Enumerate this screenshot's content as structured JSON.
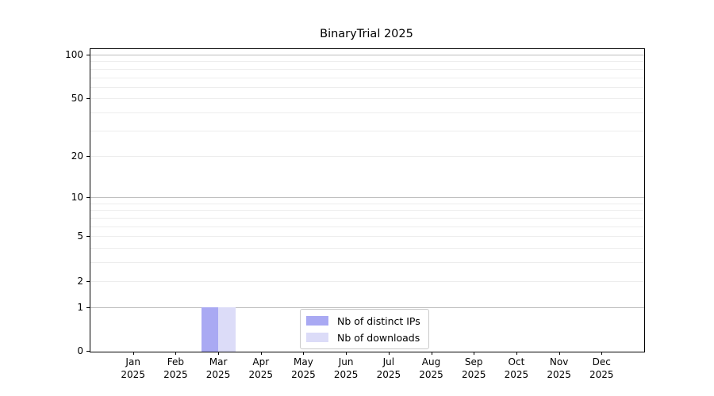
{
  "chart_data": {
    "type": "bar",
    "title": "BinaryTrial 2025",
    "categories": [
      {
        "month": "Jan",
        "year": "2025"
      },
      {
        "month": "Feb",
        "year": "2025"
      },
      {
        "month": "Mar",
        "year": "2025"
      },
      {
        "month": "Apr",
        "year": "2025"
      },
      {
        "month": "May",
        "year": "2025"
      },
      {
        "month": "Jun",
        "year": "2025"
      },
      {
        "month": "Jul",
        "year": "2025"
      },
      {
        "month": "Aug",
        "year": "2025"
      },
      {
        "month": "Sep",
        "year": "2025"
      },
      {
        "month": "Oct",
        "year": "2025"
      },
      {
        "month": "Nov",
        "year": "2025"
      },
      {
        "month": "Dec",
        "year": "2025"
      }
    ],
    "series": [
      {
        "name": "Nb of distinct IPs",
        "color": "#a9a9f3",
        "values": [
          0,
          0,
          1,
          0,
          0,
          0,
          0,
          0,
          0,
          0,
          0,
          0
        ]
      },
      {
        "name": "Nb of downloads",
        "color": "#dcdcf8",
        "values": [
          0,
          0,
          1,
          0,
          0,
          0,
          0,
          0,
          0,
          0,
          0,
          0
        ]
      }
    ],
    "xlabel": "",
    "ylabel": "",
    "yscale": "log1p",
    "ylim": [
      0,
      109
    ],
    "yticks": [
      0,
      1,
      2,
      5,
      10,
      20,
      50,
      100
    ],
    "yticks_minor": [
      3,
      4,
      6,
      7,
      8,
      9,
      30,
      40,
      60,
      70,
      80,
      90
    ],
    "major_grid_values": [
      1,
      10,
      100
    ],
    "grid": true,
    "legend_position": "lower center inside",
    "colors": {
      "major_grid": "#bdbdbd",
      "minor_grid": "#ededed",
      "spine": "#000000",
      "text": "#000000",
      "legend_border": "#c9c9c9",
      "background": "#ffffff"
    }
  }
}
